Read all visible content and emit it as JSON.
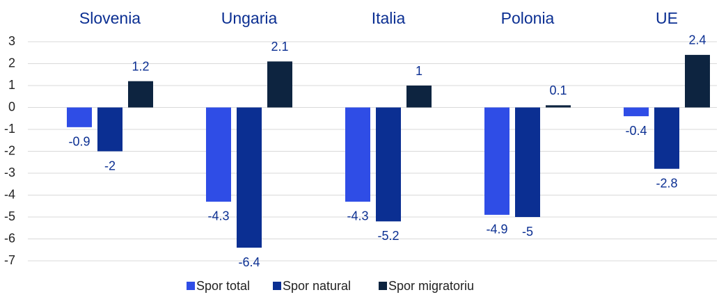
{
  "chart_data": {
    "type": "bar",
    "categories": [
      "Slovenia",
      "Ungaria",
      "Italia",
      "Polonia",
      "UE"
    ],
    "series": [
      {
        "name": "Spor total",
        "color": "#2f4de6",
        "values": [
          -0.9,
          -4.3,
          -4.3,
          -4.9,
          -0.4
        ]
      },
      {
        "name": "Spor natural",
        "color": "#0b2f92",
        "values": [
          -2,
          -6.4,
          -5.2,
          -5,
          -2.8
        ]
      },
      {
        "name": "Spor migratoriu",
        "color": "#0d2440",
        "values": [
          1.2,
          2.1,
          1,
          0.1,
          2.4
        ]
      }
    ],
    "ylim": [
      -7,
      3
    ],
    "yticks": [
      3,
      2,
      1,
      0,
      -1,
      -2,
      -3,
      -4,
      -5,
      -6,
      -7
    ],
    "grid": true,
    "legend": "bottom"
  }
}
